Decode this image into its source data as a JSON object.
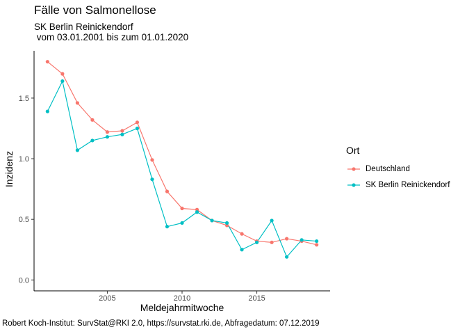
{
  "chart_data": {
    "type": "line",
    "title": "Fälle von Salmonellose",
    "subtitle": "SK Berlin Reinickendorf\n vom 03.01.2001 bis zum 01.01.2020",
    "caption": "Robert Koch-Institut: SurvStat@RKI 2.0, https://survstat.rki.de, Abfragedatum: 07.12.2019",
    "xlabel": "Meldejahrmitwoche",
    "ylabel": "Inzidenz",
    "xlim": [
      2000.1,
      2019.9
    ],
    "ylim": [
      -0.09,
      1.89
    ],
    "xticks": [
      2005,
      2010,
      2015
    ],
    "yticks": [
      0.0,
      0.5,
      1.0,
      1.5
    ],
    "ytick_labels": [
      "0.0",
      "0.5",
      "1.0",
      "1.5"
    ],
    "grid": false,
    "legend": {
      "title": "Ort",
      "position": "right"
    },
    "x": [
      2001,
      2002,
      2003,
      2004,
      2005,
      2006,
      2007,
      2008,
      2009,
      2010,
      2011,
      2012,
      2013,
      2014,
      2015,
      2016,
      2017,
      2018,
      2019
    ],
    "series": [
      {
        "name": "Deutschland",
        "color": "#F8766D",
        "values": [
          1.8,
          1.7,
          1.46,
          1.32,
          1.22,
          1.23,
          1.3,
          0.99,
          0.73,
          0.59,
          0.58,
          0.49,
          0.45,
          0.38,
          0.32,
          0.31,
          0.34,
          0.32,
          0.29
        ]
      },
      {
        "name": "SK Berlin Reinickendorf",
        "color": "#00BFC4",
        "values": [
          1.39,
          1.64,
          1.07,
          1.15,
          1.18,
          1.2,
          1.25,
          0.83,
          0.44,
          0.47,
          0.56,
          0.49,
          0.47,
          0.25,
          0.31,
          0.49,
          0.19,
          0.33,
          0.32
        ]
      }
    ]
  }
}
